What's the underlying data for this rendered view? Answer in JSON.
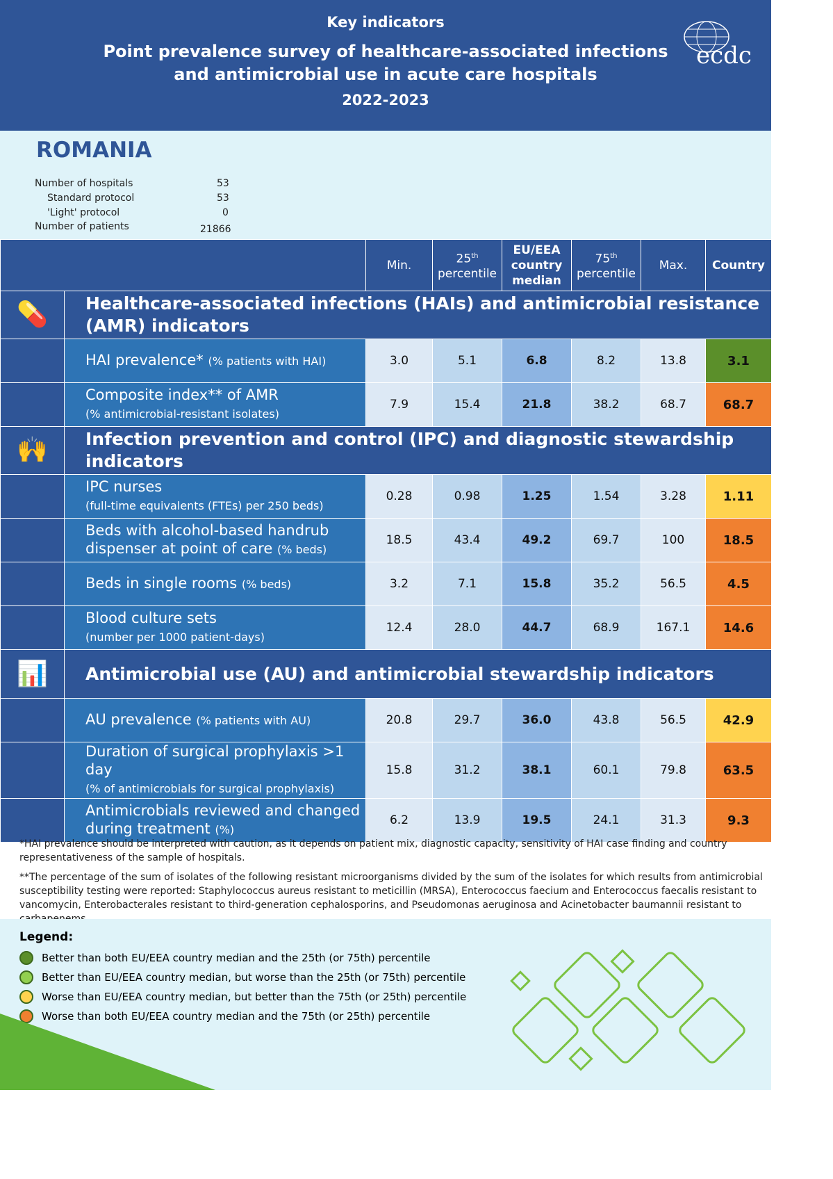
{
  "header": {
    "kicker": "Key indicators",
    "title_line1": "Point prevalence survey of healthcare-associated infections",
    "title_line2": "and antimicrobial use in acute care hospitals",
    "years": "2022-2023",
    "logo_text": "ecdc"
  },
  "country": "ROMANIA",
  "stats": [
    {
      "label": "Number of hospitals",
      "value": "53"
    },
    {
      "label": "Standard protocol",
      "value": "53"
    },
    {
      "label": "'Light' protocol",
      "value": "0"
    },
    {
      "label": "Number of patients",
      "value": "21866"
    }
  ],
  "columns": {
    "min": "Min.",
    "p25": "25",
    "p25_sup": "th",
    "p25_sub": "percentile",
    "median_1": "EU/EEA",
    "median_2": "country",
    "median_3": "median",
    "p75": "75",
    "p75_sup": "th",
    "p75_sub": "percentile",
    "max": "Max.",
    "country": "Country"
  },
  "colors": {
    "header": "#2f5597",
    "label": "#2e74b5",
    "dark_green": "#5b8f2a",
    "light_green": "#92d050",
    "yellow": "#ffd34f",
    "orange": "#f08030"
  },
  "sections": [
    {
      "title": "Healthcare-associated infections (HAIs) and antimicrobial resistance (AMR) indicators",
      "icon": "medicine-icon",
      "rows": [
        {
          "label": "HAI prevalence*",
          "unit": "(% patients with HAI)",
          "values": [
            "3.0",
            "5.1",
            "6.8",
            "8.2",
            "13.8"
          ],
          "country": "3.1",
          "status": "dark_green"
        },
        {
          "label": "Composite index** of AMR",
          "unit": "(% antimicrobial-resistant isolates)",
          "values": [
            "7.9",
            "15.4",
            "21.8",
            "38.2",
            "68.7"
          ],
          "country": "68.7",
          "status": "orange",
          "unit_newline": true
        }
      ]
    },
    {
      "title": "Infection prevention and control (IPC) and diagnostic stewardship indicators",
      "icon": "handwash-icon",
      "rows": [
        {
          "label": "IPC nurses",
          "unit": "(full-time equivalents (FTEs) per 250 beds)",
          "values": [
            "0.28",
            "0.98",
            "1.25",
            "1.54",
            "3.28"
          ],
          "country": "1.11",
          "status": "yellow",
          "unit_newline": true
        },
        {
          "label": "Beds with alcohol-based handrub dispenser at point of care",
          "unit": "(% beds)",
          "values": [
            "18.5",
            "43.4",
            "49.2",
            "69.7",
            "100"
          ],
          "country": "18.5",
          "status": "orange"
        },
        {
          "label": "Beds in single rooms",
          "unit": "(% beds)",
          "values": [
            "3.2",
            "7.1",
            "15.8",
            "35.2",
            "56.5"
          ],
          "country": "4.5",
          "status": "orange"
        },
        {
          "label": "Blood culture sets",
          "unit": "(number per 1000 patient-days)",
          "values": [
            "12.4",
            "28.0",
            "44.7",
            "68.9",
            "167.1"
          ],
          "country": "14.6",
          "status": "orange",
          "unit_newline": true
        }
      ]
    },
    {
      "title": "Antimicrobial use (AU) and antimicrobial stewardship indicators",
      "icon": "pills-chart-icon",
      "rows": [
        {
          "label": "AU prevalence",
          "unit": "(% patients with AU)",
          "values": [
            "20.8",
            "29.7",
            "36.0",
            "43.8",
            "56.5"
          ],
          "country": "42.9",
          "status": "yellow"
        },
        {
          "label": "Duration of surgical prophylaxis >1 day",
          "unit": "(% of antimicrobials for surgical prophylaxis)",
          "values": [
            "15.8",
            "31.2",
            "38.1",
            "60.1",
            "79.8"
          ],
          "country": "63.5",
          "status": "orange",
          "unit_newline": true
        },
        {
          "label": "Antimicrobials reviewed and changed during treatment",
          "unit": "(%)",
          "values": [
            "6.2",
            "13.9",
            "19.5",
            "24.1",
            "31.3"
          ],
          "country": "9.3",
          "status": "orange"
        }
      ]
    }
  ],
  "notes": [
    "*HAI prevalence should be interpreted with caution, as it depends on patient mix, diagnostic capacity, sensitivity of HAI case finding and country representativeness of the sample of hospitals.",
    "**The percentage of the sum of isolates of the following resistant microorganisms divided by the sum of the isolates for which results from antimicrobial susceptibility testing were reported: Staphylococcus aureus resistant to meticillin (MRSA), Enterococcus faecium and Enterococcus faecalis resistant to vancomycin, Enterobacterales resistant to third-generation cephalosporins, and Pseudomonas aeruginosa and Acinetobacter baumannii resistant to carbapenems."
  ],
  "legend": {
    "title": "Legend:",
    "items": [
      {
        "text": "Better than both EU/EEA country median and the 25th (or 75th) percentile",
        "color": "#5b8f2a"
      },
      {
        "text": "Better than EU/EEA country median, but worse than the 25th (or 75th) percentile",
        "color": "#92d050"
      },
      {
        "text": "Worse than EU/EEA country median, but better than the 75th (or 25th) percentile",
        "color": "#ffd34f"
      },
      {
        "text": "Worse than both EU/EEA country median and the 75th (or 25th) percentile",
        "color": "#f08030"
      }
    ]
  }
}
